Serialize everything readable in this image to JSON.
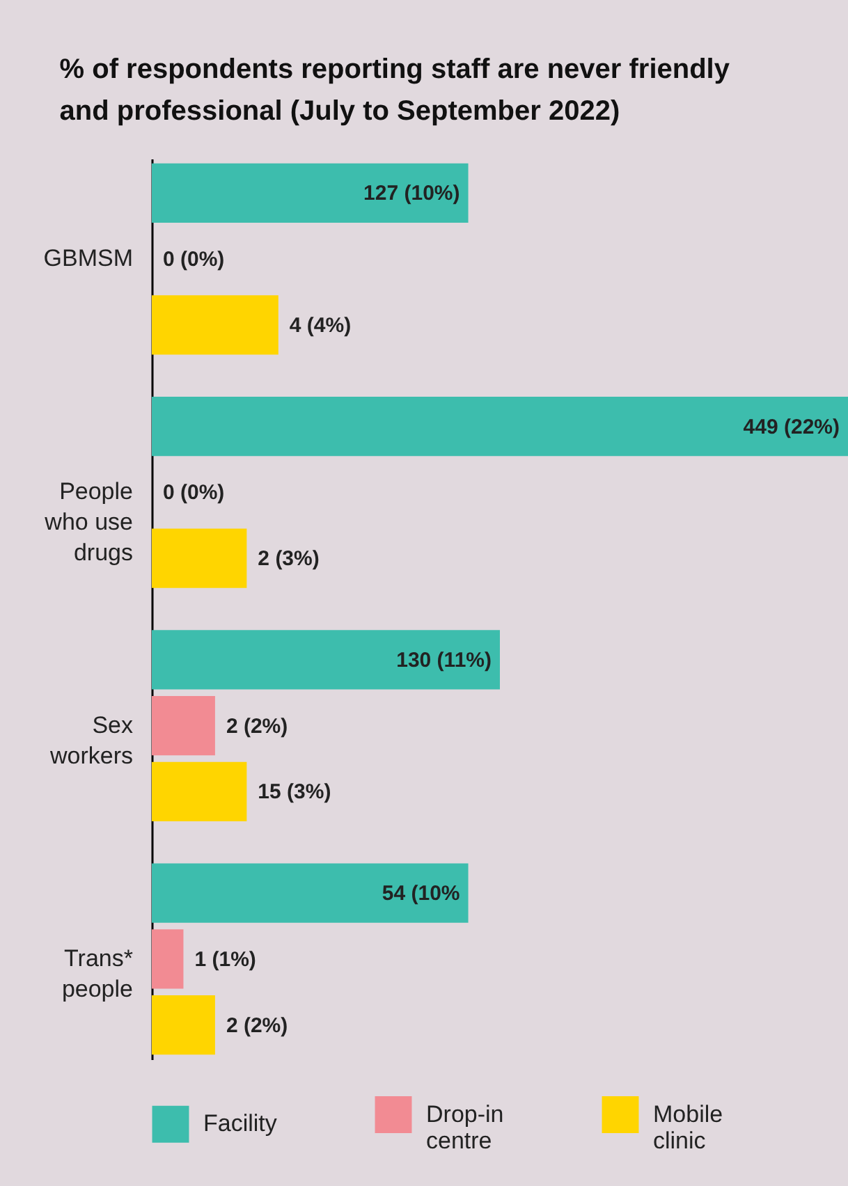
{
  "chart_data": {
    "type": "bar",
    "orientation": "horizontal",
    "title": "% of respondents reporting staff are never friendly and professional (July to September 2022)",
    "categories": [
      "GBMSM",
      "People who use drugs",
      "Sex workers",
      "Trans* people"
    ],
    "series": [
      {
        "name": "Facility",
        "color": "#3dbdad",
        "values": [
          10,
          22,
          11,
          10
        ],
        "value_labels": [
          "127 (10%)",
          "449 (22%)",
          "130 (11%)",
          "54 (10%"
        ]
      },
      {
        "name": "Drop-in centre",
        "color": "#f28b93",
        "values": [
          0,
          0,
          2,
          1
        ],
        "value_labels": [
          "0 (0%)",
          "0 (0%)",
          "2 (2%)",
          "1 (1%)"
        ]
      },
      {
        "name": "Mobile clinic",
        "color": "#ffd500",
        "values": [
          4,
          3,
          3,
          2
        ],
        "value_labels": [
          "4 (4%)",
          "2 (3%)",
          "15 (3%)",
          "2 (2%)"
        ]
      }
    ],
    "legend": "bottom"
  }
}
